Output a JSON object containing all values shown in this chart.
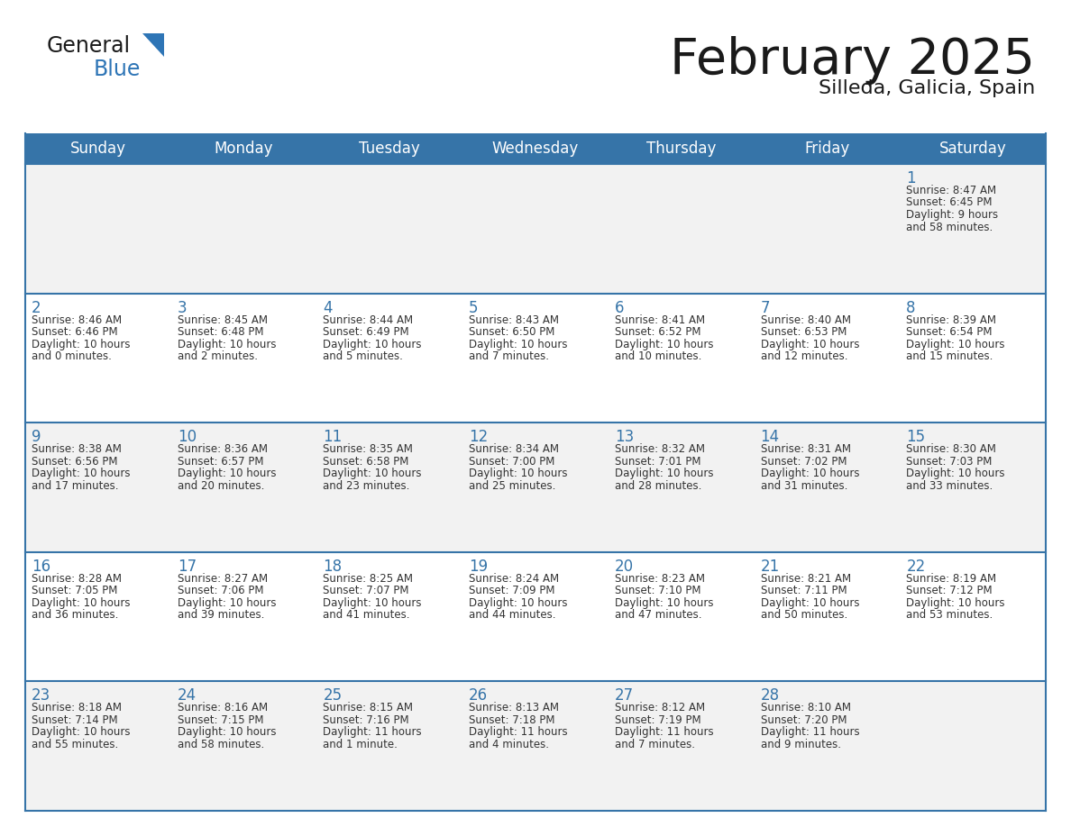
{
  "title": "February 2025",
  "subtitle": "Silleda, Galicia, Spain",
  "header_bg": "#3674A8",
  "header_text_color": "#FFFFFF",
  "row_bg_odd": "#F2F2F2",
  "row_bg_even": "#FFFFFF",
  "cell_border_color": "#3674A8",
  "day_number_color": "#3674A8",
  "cell_text_color": "#333333",
  "background_color": "#FFFFFF",
  "days_of_week": [
    "Sunday",
    "Monday",
    "Tuesday",
    "Wednesday",
    "Thursday",
    "Friday",
    "Saturday"
  ],
  "calendar_data": [
    [
      null,
      null,
      null,
      null,
      null,
      null,
      {
        "day": "1",
        "sunrise": "8:47 AM",
        "sunset": "6:45 PM",
        "daylight_line1": "Daylight: 9 hours",
        "daylight_line2": "and 58 minutes."
      }
    ],
    [
      {
        "day": "2",
        "sunrise": "8:46 AM",
        "sunset": "6:46 PM",
        "daylight_line1": "Daylight: 10 hours",
        "daylight_line2": "and 0 minutes."
      },
      {
        "day": "3",
        "sunrise": "8:45 AM",
        "sunset": "6:48 PM",
        "daylight_line1": "Daylight: 10 hours",
        "daylight_line2": "and 2 minutes."
      },
      {
        "day": "4",
        "sunrise": "8:44 AM",
        "sunset": "6:49 PM",
        "daylight_line1": "Daylight: 10 hours",
        "daylight_line2": "and 5 minutes."
      },
      {
        "day": "5",
        "sunrise": "8:43 AM",
        "sunset": "6:50 PM",
        "daylight_line1": "Daylight: 10 hours",
        "daylight_line2": "and 7 minutes."
      },
      {
        "day": "6",
        "sunrise": "8:41 AM",
        "sunset": "6:52 PM",
        "daylight_line1": "Daylight: 10 hours",
        "daylight_line2": "and 10 minutes."
      },
      {
        "day": "7",
        "sunrise": "8:40 AM",
        "sunset": "6:53 PM",
        "daylight_line1": "Daylight: 10 hours",
        "daylight_line2": "and 12 minutes."
      },
      {
        "day": "8",
        "sunrise": "8:39 AM",
        "sunset": "6:54 PM",
        "daylight_line1": "Daylight: 10 hours",
        "daylight_line2": "and 15 minutes."
      }
    ],
    [
      {
        "day": "9",
        "sunrise": "8:38 AM",
        "sunset": "6:56 PM",
        "daylight_line1": "Daylight: 10 hours",
        "daylight_line2": "and 17 minutes."
      },
      {
        "day": "10",
        "sunrise": "8:36 AM",
        "sunset": "6:57 PM",
        "daylight_line1": "Daylight: 10 hours",
        "daylight_line2": "and 20 minutes."
      },
      {
        "day": "11",
        "sunrise": "8:35 AM",
        "sunset": "6:58 PM",
        "daylight_line1": "Daylight: 10 hours",
        "daylight_line2": "and 23 minutes."
      },
      {
        "day": "12",
        "sunrise": "8:34 AM",
        "sunset": "7:00 PM",
        "daylight_line1": "Daylight: 10 hours",
        "daylight_line2": "and 25 minutes."
      },
      {
        "day": "13",
        "sunrise": "8:32 AM",
        "sunset": "7:01 PM",
        "daylight_line1": "Daylight: 10 hours",
        "daylight_line2": "and 28 minutes."
      },
      {
        "day": "14",
        "sunrise": "8:31 AM",
        "sunset": "7:02 PM",
        "daylight_line1": "Daylight: 10 hours",
        "daylight_line2": "and 31 minutes."
      },
      {
        "day": "15",
        "sunrise": "8:30 AM",
        "sunset": "7:03 PM",
        "daylight_line1": "Daylight: 10 hours",
        "daylight_line2": "and 33 minutes."
      }
    ],
    [
      {
        "day": "16",
        "sunrise": "8:28 AM",
        "sunset": "7:05 PM",
        "daylight_line1": "Daylight: 10 hours",
        "daylight_line2": "and 36 minutes."
      },
      {
        "day": "17",
        "sunrise": "8:27 AM",
        "sunset": "7:06 PM",
        "daylight_line1": "Daylight: 10 hours",
        "daylight_line2": "and 39 minutes."
      },
      {
        "day": "18",
        "sunrise": "8:25 AM",
        "sunset": "7:07 PM",
        "daylight_line1": "Daylight: 10 hours",
        "daylight_line2": "and 41 minutes."
      },
      {
        "day": "19",
        "sunrise": "8:24 AM",
        "sunset": "7:09 PM",
        "daylight_line1": "Daylight: 10 hours",
        "daylight_line2": "and 44 minutes."
      },
      {
        "day": "20",
        "sunrise": "8:23 AM",
        "sunset": "7:10 PM",
        "daylight_line1": "Daylight: 10 hours",
        "daylight_line2": "and 47 minutes."
      },
      {
        "day": "21",
        "sunrise": "8:21 AM",
        "sunset": "7:11 PM",
        "daylight_line1": "Daylight: 10 hours",
        "daylight_line2": "and 50 minutes."
      },
      {
        "day": "22",
        "sunrise": "8:19 AM",
        "sunset": "7:12 PM",
        "daylight_line1": "Daylight: 10 hours",
        "daylight_line2": "and 53 minutes."
      }
    ],
    [
      {
        "day": "23",
        "sunrise": "8:18 AM",
        "sunset": "7:14 PM",
        "daylight_line1": "Daylight: 10 hours",
        "daylight_line2": "and 55 minutes."
      },
      {
        "day": "24",
        "sunrise": "8:16 AM",
        "sunset": "7:15 PM",
        "daylight_line1": "Daylight: 10 hours",
        "daylight_line2": "and 58 minutes."
      },
      {
        "day": "25",
        "sunrise": "8:15 AM",
        "sunset": "7:16 PM",
        "daylight_line1": "Daylight: 11 hours",
        "daylight_line2": "and 1 minute."
      },
      {
        "day": "26",
        "sunrise": "8:13 AM",
        "sunset": "7:18 PM",
        "daylight_line1": "Daylight: 11 hours",
        "daylight_line2": "and 4 minutes."
      },
      {
        "day": "27",
        "sunrise": "8:12 AM",
        "sunset": "7:19 PM",
        "daylight_line1": "Daylight: 11 hours",
        "daylight_line2": "and 7 minutes."
      },
      {
        "day": "28",
        "sunrise": "8:10 AM",
        "sunset": "7:20 PM",
        "daylight_line1": "Daylight: 11 hours",
        "daylight_line2": "and 9 minutes."
      },
      null
    ]
  ]
}
